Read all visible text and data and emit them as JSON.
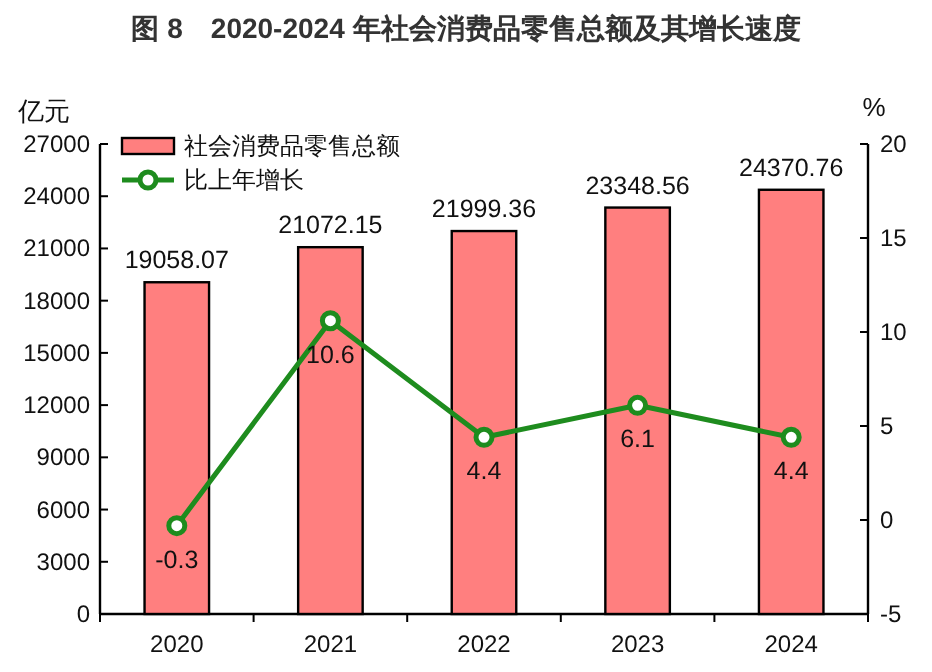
{
  "chart_data": {
    "type": "bar",
    "title": "图 8　2020-2024 年社会消费品零售总额及其增长速度",
    "ylabel": "亿元",
    "y2label": "%",
    "categories": [
      "2020",
      "2021",
      "2022",
      "2023",
      "2024"
    ],
    "series": [
      {
        "name": "社会消费品零售总额",
        "color": "#ff7f7f",
        "values": [
          19058.07,
          21072.15,
          21999.36,
          23348.56,
          24370.76
        ]
      },
      {
        "name": "比上年增长",
        "type": "line",
        "axis": "y2",
        "color": "#1e8c1e",
        "marker": "circle",
        "values": [
          -0.3,
          10.6,
          4.4,
          6.1,
          4.4
        ]
      }
    ],
    "ylim": [
      0,
      27000
    ],
    "yticks": [
      0,
      3000,
      6000,
      9000,
      12000,
      15000,
      18000,
      21000,
      24000,
      27000
    ],
    "y2lim": [
      -5,
      20
    ],
    "y2ticks": [
      -5,
      0,
      5,
      10,
      15,
      20
    ],
    "data_labels": true,
    "legend": "top left"
  }
}
